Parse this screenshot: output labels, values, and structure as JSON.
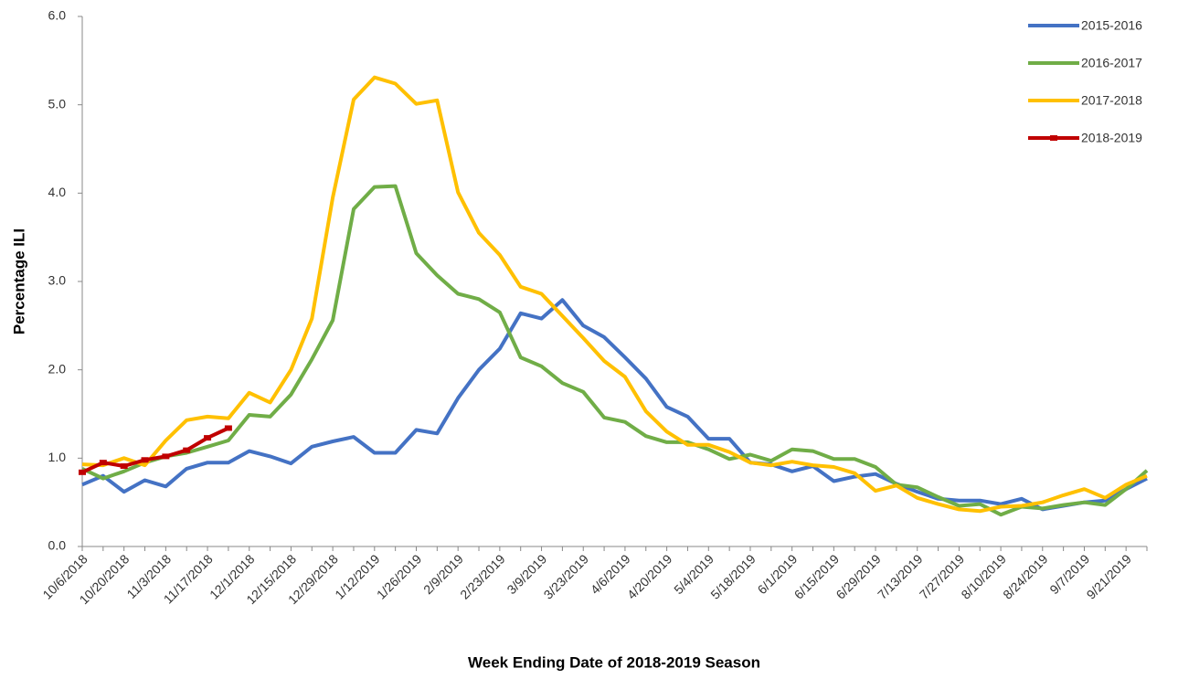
{
  "chart_data": {
    "type": "line",
    "x_label": "Week Ending Date of 2018-2019 Season",
    "y_label": "Percentage ILI",
    "categories": [
      "10/6/2018",
      null,
      "10/20/2018",
      null,
      "11/3/2018",
      null,
      "11/17/2018",
      null,
      "12/1/2018",
      null,
      "12/15/2018",
      null,
      "12/29/2018",
      null,
      "1/12/2019",
      null,
      "1/26/2019",
      null,
      "2/9/2019",
      null,
      "2/23/2019",
      null,
      "3/9/2019",
      null,
      "3/23/2019",
      null,
      "4/6/2019",
      null,
      "4/20/2019",
      null,
      "5/4/2019",
      null,
      "5/18/2019",
      null,
      "6/1/2019",
      null,
      "6/15/2019",
      null,
      "6/29/2019",
      null,
      "7/13/2019",
      null,
      "7/27/2019",
      null,
      "8/10/2019",
      null,
      "8/24/2019",
      null,
      "9/7/2019",
      null,
      "9/21/2019",
      null
    ],
    "series": [
      {
        "name": "2015-2016",
        "color": "#4472c4",
        "values": [
          0.7,
          0.8,
          0.62,
          0.75,
          0.68,
          0.88,
          0.95,
          0.95,
          1.08,
          1.02,
          0.94,
          1.13,
          1.19,
          1.24,
          1.06,
          1.06,
          1.32,
          1.28,
          1.68,
          2.0,
          2.24,
          2.64,
          2.58,
          2.79,
          2.5,
          2.37,
          2.14,
          1.9,
          1.58,
          1.47,
          1.22,
          1.22,
          0.95,
          0.93,
          0.85,
          0.91,
          0.74,
          0.79,
          0.82,
          0.71,
          0.62,
          0.54,
          0.52,
          0.52,
          0.48,
          0.54,
          0.42,
          0.46,
          0.5,
          0.52,
          0.65,
          0.77
        ]
      },
      {
        "name": "2016-2017",
        "color": "#70ad47",
        "values": [
          0.88,
          0.77,
          0.85,
          0.95,
          1.02,
          1.06,
          1.13,
          1.2,
          1.49,
          1.47,
          1.72,
          2.12,
          2.56,
          3.82,
          4.07,
          4.08,
          3.32,
          3.07,
          2.86,
          2.8,
          2.65,
          2.14,
          2.04,
          1.85,
          1.75,
          1.46,
          1.41,
          1.25,
          1.18,
          1.18,
          1.1,
          0.99,
          1.04,
          0.97,
          1.1,
          1.08,
          0.99,
          0.99,
          0.9,
          0.7,
          0.67,
          0.56,
          0.46,
          0.48,
          0.36,
          0.45,
          0.43,
          0.47,
          0.5,
          0.47,
          0.65,
          0.86
        ]
      },
      {
        "name": "2017-2018",
        "color": "#ffc000",
        "values": [
          0.93,
          0.92,
          1.0,
          0.92,
          1.2,
          1.43,
          1.47,
          1.45,
          1.74,
          1.63,
          2.0,
          2.58,
          3.95,
          5.06,
          5.31,
          5.24,
          5.01,
          5.05,
          4.01,
          3.55,
          3.3,
          2.94,
          2.86,
          2.61,
          2.36,
          2.1,
          1.92,
          1.53,
          1.3,
          1.15,
          1.15,
          1.07,
          0.95,
          0.92,
          0.96,
          0.92,
          0.9,
          0.83,
          0.63,
          0.69,
          0.55,
          0.48,
          0.42,
          0.4,
          0.45,
          0.46,
          0.5,
          0.58,
          0.65,
          0.55,
          0.7,
          0.8
        ]
      },
      {
        "name": "2018-2019",
        "color": "#c00000",
        "markers": true,
        "values": [
          0.84,
          0.95,
          0.91,
          0.98,
          1.02,
          1.09,
          1.23,
          1.34,
          null,
          null,
          null,
          null,
          null,
          null,
          null,
          null,
          null,
          null,
          null,
          null,
          null,
          null,
          null,
          null,
          null,
          null,
          null,
          null,
          null,
          null,
          null,
          null,
          null,
          null,
          null,
          null,
          null,
          null,
          null,
          null,
          null,
          null,
          null,
          null,
          null,
          null,
          null,
          null,
          null,
          null,
          null,
          null
        ]
      }
    ],
    "ylim": [
      0,
      6
    ],
    "yticks": [
      {
        "value": 0,
        "label": "0.0"
      },
      {
        "value": 1,
        "label": "1.0"
      },
      {
        "value": 2,
        "label": "2.0"
      },
      {
        "value": 3,
        "label": "3.0"
      },
      {
        "value": 4,
        "label": "4.0"
      },
      {
        "value": 5,
        "label": "5.0"
      },
      {
        "value": 6,
        "label": "6.0"
      }
    ],
    "legend": "top-right"
  }
}
